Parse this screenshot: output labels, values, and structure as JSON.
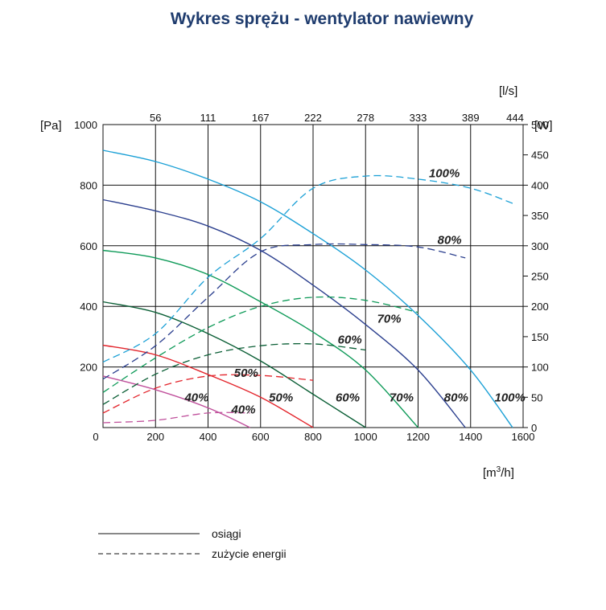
{
  "chart_data": {
    "type": "line",
    "title": "Wykres sprężu - wentylator nawiewny",
    "x_unit": "[m³/h]",
    "x_unit_base": "[m",
    "x_unit_sup": "3",
    "x_unit_tail": "/h]",
    "x2_unit": "[l/s]",
    "y_unit": "[Pa]",
    "y2_unit": "[W]",
    "xlim": [
      0,
      1600
    ],
    "ylim": [
      0,
      1000
    ],
    "y2lim": [
      0,
      500
    ],
    "x_ticks": [
      0,
      200,
      400,
      600,
      800,
      1000,
      1200,
      1400,
      1600
    ],
    "x2_ticks": [
      {
        "label": "56",
        "x": 200
      },
      {
        "label": "111",
        "x": 400
      },
      {
        "label": "167",
        "x": 600
      },
      {
        "label": "222",
        "x": 800
      },
      {
        "label": "278",
        "x": 1000
      },
      {
        "label": "333",
        "x": 1200
      },
      {
        "label": "389",
        "x": 1400
      },
      {
        "label": "444",
        "x": 1600
      }
    ],
    "y_ticks": [
      200,
      400,
      600,
      800,
      1000
    ],
    "y2_ticks": [
      0,
      50,
      100,
      150,
      200,
      250,
      300,
      350,
      400,
      450,
      500
    ],
    "grid": true,
    "pressure_series": [
      {
        "label": "100%",
        "color": "#1ba0d6",
        "points": [
          [
            0,
            915
          ],
          [
            200,
            878
          ],
          [
            400,
            820
          ],
          [
            600,
            745
          ],
          [
            800,
            640
          ],
          [
            1000,
            520
          ],
          [
            1200,
            370
          ],
          [
            1400,
            190
          ],
          [
            1560,
            0
          ]
        ],
        "label_at": [
          1550,
          100
        ]
      },
      {
        "label": "80%",
        "color": "#2b3f8e",
        "points": [
          [
            0,
            752
          ],
          [
            200,
            715
          ],
          [
            400,
            665
          ],
          [
            600,
            585
          ],
          [
            800,
            470
          ],
          [
            1000,
            340
          ],
          [
            1200,
            190
          ],
          [
            1380,
            0
          ]
        ],
        "label_at": [
          1345,
          100
        ]
      },
      {
        "label": "70%",
        "color": "#0e9a58",
        "points": [
          [
            0,
            585
          ],
          [
            200,
            560
          ],
          [
            400,
            505
          ],
          [
            600,
            415
          ],
          [
            800,
            315
          ],
          [
            1000,
            190
          ],
          [
            1200,
            0
          ]
        ],
        "label_at": [
          1137,
          100
        ]
      },
      {
        "label": "60%",
        "color": "#0a5e35",
        "points": [
          [
            0,
            415
          ],
          [
            200,
            380
          ],
          [
            400,
            310
          ],
          [
            600,
            220
          ],
          [
            800,
            110
          ],
          [
            1000,
            0
          ]
        ],
        "label_at": [
          932,
          100
        ]
      },
      {
        "label": "50%",
        "color": "#e3242b",
        "points": [
          [
            0,
            272
          ],
          [
            200,
            240
          ],
          [
            400,
            175
          ],
          [
            600,
            100
          ],
          [
            800,
            0
          ]
        ],
        "label_at": [
          678,
          100
        ]
      },
      {
        "label": "40%",
        "color": "#c0509c",
        "points": [
          [
            0,
            170
          ],
          [
            200,
            125
          ],
          [
            400,
            65
          ],
          [
            560,
            0
          ]
        ],
        "label_at": [
          357,
          100
        ]
      }
    ],
    "power_series": [
      {
        "label": "100%",
        "color": "#1ba0d6",
        "points": [
          [
            0,
            108
          ],
          [
            200,
            155
          ],
          [
            400,
            248
          ],
          [
            600,
            312
          ],
          [
            800,
            395
          ],
          [
            1000,
            415
          ],
          [
            1200,
            410
          ],
          [
            1400,
            395
          ],
          [
            1560,
            370
          ]
        ],
        "label_at": [
          1300,
          420
        ]
      },
      {
        "label": "80%",
        "color": "#2b3f8e",
        "points": [
          [
            0,
            80
          ],
          [
            200,
            135
          ],
          [
            400,
            215
          ],
          [
            600,
            290
          ],
          [
            800,
            302
          ],
          [
            1000,
            302
          ],
          [
            1200,
            298
          ],
          [
            1380,
            280
          ]
        ],
        "label_at": [
          1320,
          310
        ]
      },
      {
        "label": "70%",
        "color": "#0e9a58",
        "points": [
          [
            0,
            58
          ],
          [
            200,
            115
          ],
          [
            400,
            165
          ],
          [
            600,
            200
          ],
          [
            800,
            215
          ],
          [
            1000,
            210
          ],
          [
            1200,
            190
          ]
        ],
        "label_at": [
          1090,
          180
        ]
      },
      {
        "label": "60%",
        "color": "#0a5e35",
        "points": [
          [
            0,
            38
          ],
          [
            200,
            88
          ],
          [
            400,
            120
          ],
          [
            600,
            135
          ],
          [
            800,
            138
          ],
          [
            1000,
            128
          ]
        ],
        "label_at": [
          940,
          145
        ]
      },
      {
        "label": "50%",
        "color": "#e3242b",
        "points": [
          [
            0,
            24
          ],
          [
            200,
            65
          ],
          [
            400,
            85
          ],
          [
            600,
            86
          ],
          [
            800,
            78
          ]
        ],
        "label_at": [
          545,
          90
        ]
      },
      {
        "label": "40%",
        "color": "#c0509c",
        "points": [
          [
            0,
            8
          ],
          [
            200,
            12
          ],
          [
            400,
            24
          ],
          [
            560,
            24
          ]
        ],
        "label_at": [
          535,
          30
        ]
      }
    ],
    "legend": [
      {
        "style": "solid",
        "label": "osiągi"
      },
      {
        "style": "dashed",
        "label": "zużycie energii"
      }
    ]
  }
}
